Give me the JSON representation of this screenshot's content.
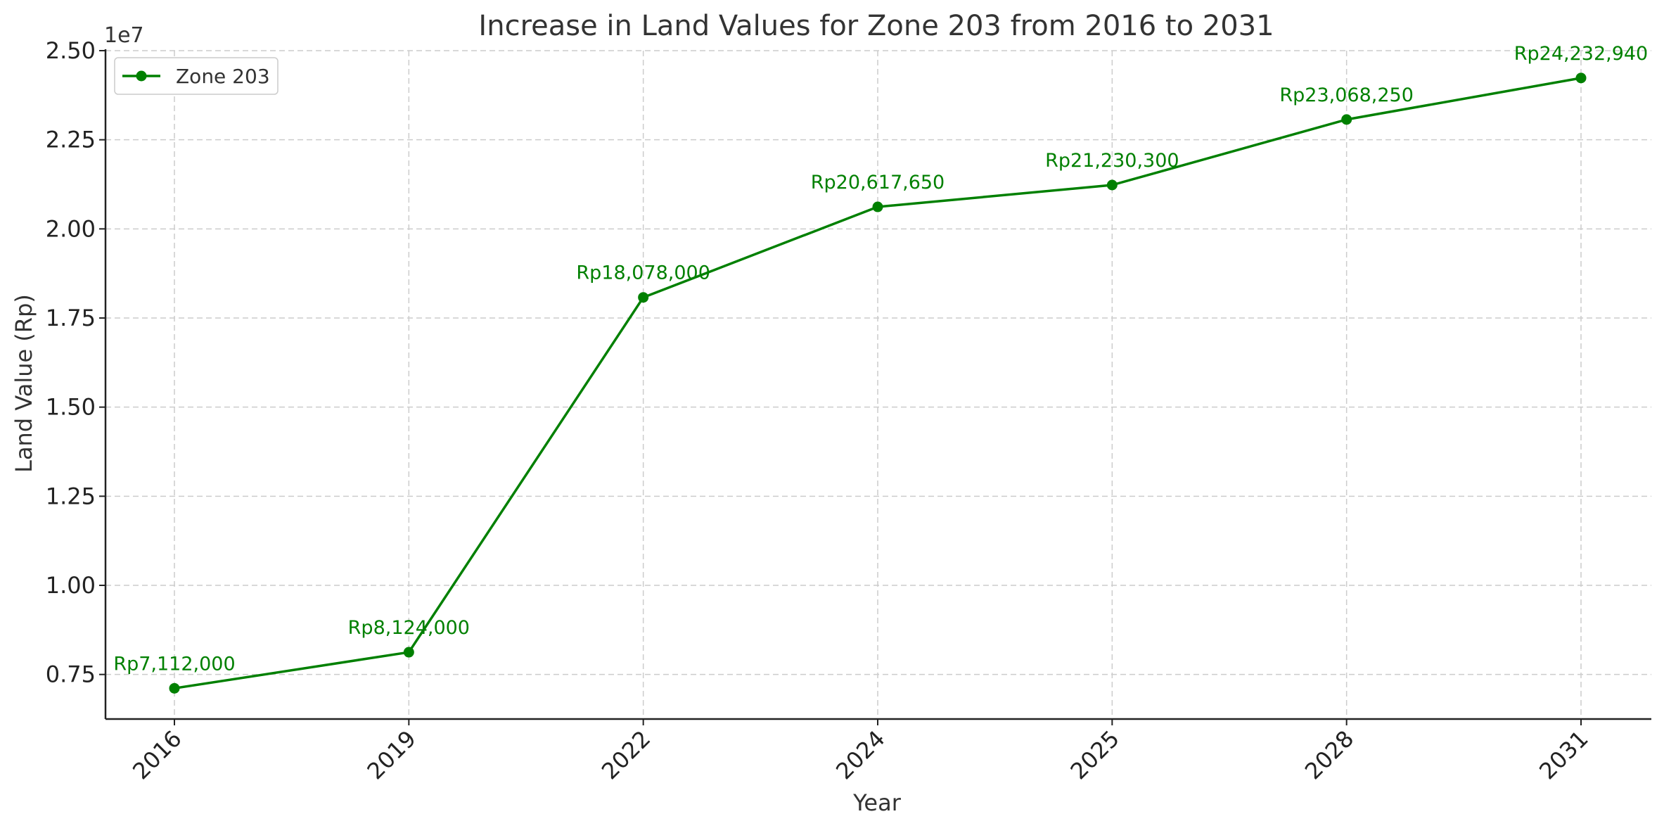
{
  "chart_data": {
    "type": "line",
    "title": "Increase in Land Values for Zone 203 from 2016 to 2031",
    "xlabel": "Year",
    "ylabel": "Land Value (Rp)",
    "y_offset_label": "1e7",
    "categories": [
      "2016",
      "2019",
      "2022",
      "2024",
      "2025",
      "2028",
      "2031"
    ],
    "y_ticks": [
      0.75,
      1.0,
      1.25,
      1.5,
      1.75,
      2.0,
      2.25,
      2.5
    ],
    "y_tick_labels": [
      "0.75",
      "1.00",
      "1.25",
      "1.50",
      "1.75",
      "2.00",
      "2.25",
      "2.50"
    ],
    "ylim": [
      6250000,
      25000000
    ],
    "grid": true,
    "legend_position": "top-left",
    "series": [
      {
        "name": "Zone 203",
        "color": "#008000",
        "values": [
          7112000,
          8124000,
          18078000,
          20617650,
          21230300,
          23068250,
          24232940
        ],
        "labels": [
          "Rp7,112,000",
          "Rp8,124,000",
          "Rp18,078,000",
          "Rp20,617,650",
          "Rp21,230,300",
          "Rp23,068,250",
          "Rp24,232,940"
        ]
      }
    ]
  }
}
